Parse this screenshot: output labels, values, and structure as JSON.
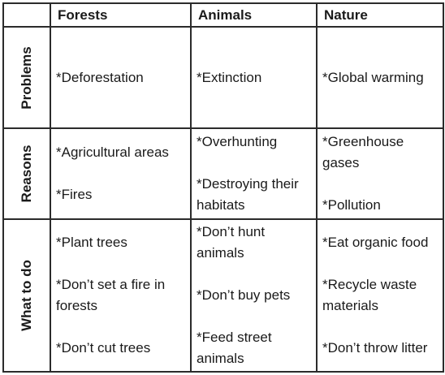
{
  "columns": [
    "",
    "Forests",
    "Animals",
    "Nature"
  ],
  "rows": [
    {
      "label": "Problems",
      "forests": [
        "*Deforestation"
      ],
      "animals": [
        "*Extinction"
      ],
      "nature": [
        "*Global warming"
      ]
    },
    {
      "label": "Reasons",
      "forests": [
        "*Agricultural areas",
        "*Fires"
      ],
      "animals": [
        "*Overhunting",
        "*Destroying their habitats"
      ],
      "nature": [
        "*Greenhouse gases",
        "*Pollution"
      ]
    },
    {
      "label": "What to do",
      "forests": [
        "*Plant trees",
        "*Don’t set a fire in forests",
        "*Don’t cut trees"
      ],
      "animals": [
        "*Don’t hunt animals",
        "*Don’t buy pets",
        "*Feed street animals"
      ],
      "nature": [
        "*Eat organic food",
        "*Recycle waste materials",
        "*Don’t throw litter"
      ]
    }
  ]
}
